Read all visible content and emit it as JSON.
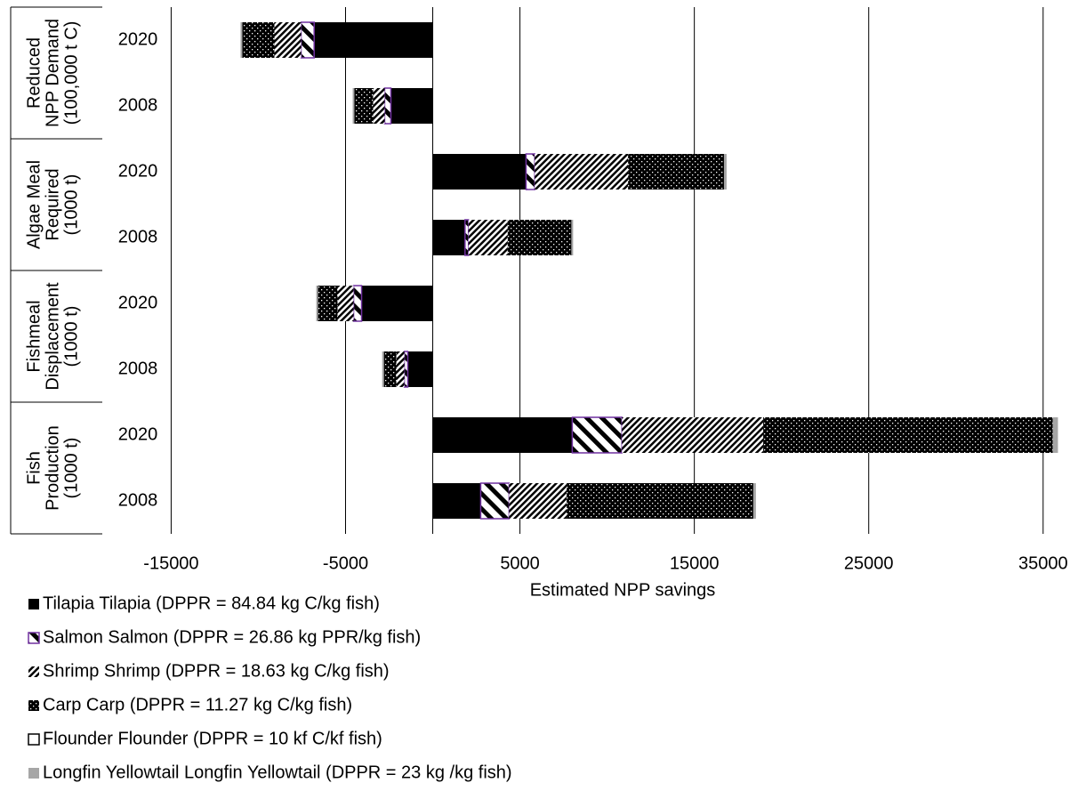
{
  "chart_data": {
    "type": "bar",
    "orientation": "horizontal",
    "stacked": true,
    "categories": [
      "2020",
      "2008",
      "2020",
      "2008",
      "2020",
      "2008",
      "2020",
      "2008"
    ],
    "groups": [
      {
        "label": [
          "Reduced",
          "NPP Demand",
          "(100,000 t C)"
        ],
        "size": 2
      },
      {
        "label": [
          "Algae Meal",
          "Required",
          "(1000 t)"
        ],
        "size": 2
      },
      {
        "label": [
          "Fishmeal",
          "Displacement",
          "(1000 t)"
        ],
        "size": 2
      },
      {
        "label": [
          "Fish",
          "Production",
          "(1000 t)"
        ],
        "size": 2
      }
    ],
    "x_label": "Estimated NPP savings",
    "xlim": [
      -19000,
      37000
    ],
    "xticks": [
      -15000,
      -5000,
      5000,
      15000,
      25000,
      35000
    ],
    "grid": true,
    "legend": "bottom-left",
    "series": [
      {
        "name": "Tilapia Tilapia (DPPR = 84.84 kg C/kg fish)",
        "color": "#000000",
        "pattern": "solid",
        "values": [
          -6800,
          -2400,
          5350,
          1850,
          -4080,
          -1430,
          8000,
          2750
        ]
      },
      {
        "name": "Salmon Salmon (DPPR = 26.86 kg PPR/kg fish)",
        "color": "#7030a0",
        "pattern": "wide-diagonal",
        "values": [
          -750,
          -360,
          500,
          200,
          -460,
          -200,
          2850,
          1630
        ]
      },
      {
        "name": "Shrimp Shrimp (DPPR = 18.63 kg C/kg fish)",
        "color": "#000000",
        "pattern": "dense-diagonal",
        "values": [
          -1530,
          -660,
          5350,
          2250,
          -920,
          -460,
          8100,
          3300
        ]
      },
      {
        "name": "Carp Carp (DPPR = 11.27 kg C/kg fish)",
        "color": "#000000",
        "pattern": "dotted",
        "values": [
          -1840,
          -1070,
          5500,
          3650,
          -1120,
          -710,
          16600,
          10700
        ]
      },
      {
        "name": "Flounder Flounder (DPPR = 10 kf C/kf fish)",
        "color": "#ffffff",
        "pattern": "solid",
        "values": [
          0,
          0,
          0,
          0,
          0,
          0,
          0,
          0
        ]
      },
      {
        "name": "Longfin Yellowtail Longfin Yellowtail (DPPR = 23 kg /kg fish)",
        "color": "#a6a6a6",
        "pattern": "solid",
        "values": [
          -100,
          -100,
          150,
          100,
          -100,
          -100,
          300,
          150
        ]
      }
    ]
  }
}
